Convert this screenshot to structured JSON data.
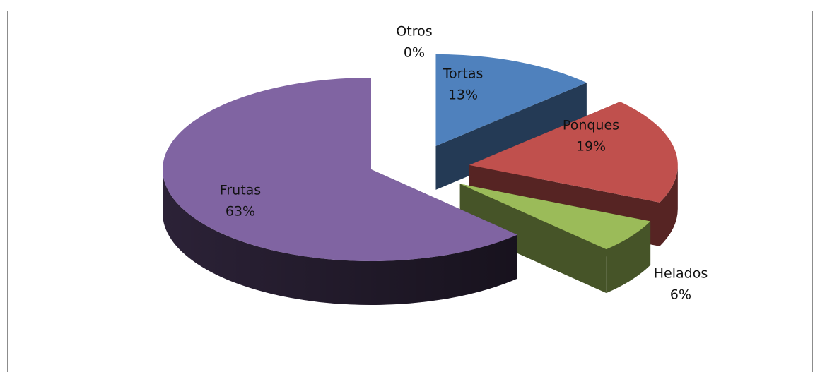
{
  "chart_data": {
    "type": "pie",
    "categories": [
      "Otros",
      "Tortas",
      "Ponques",
      "Helados",
      "Frutas"
    ],
    "values": [
      0,
      13,
      19,
      6,
      63
    ],
    "value_labels": [
      "0%",
      "13%",
      "19%",
      "6%",
      "63%"
    ],
    "colors": [
      "#4bacc6",
      "#4f81bd",
      "#c0504d",
      "#9bbb59",
      "#8064a2"
    ]
  }
}
